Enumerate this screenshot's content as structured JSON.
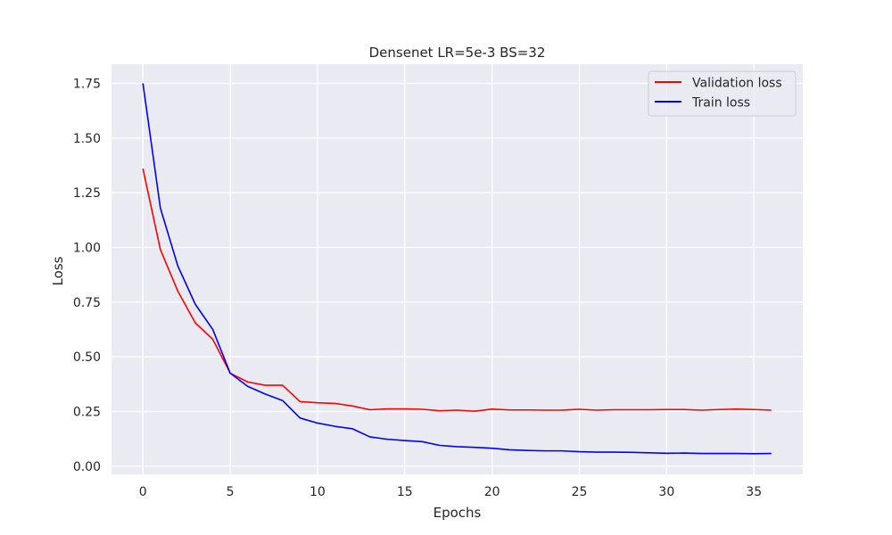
{
  "chart_data": {
    "type": "line",
    "title": "Densenet LR=5e-3 BS=32",
    "xlabel": "Epochs",
    "ylabel": "Loss",
    "xlim": [
      -1.8,
      37.8
    ],
    "ylim": [
      -0.0375,
      1.8375
    ],
    "xticks": [
      0,
      5,
      10,
      15,
      20,
      25,
      30,
      35
    ],
    "xtick_labels": [
      "0",
      "5",
      "10",
      "15",
      "20",
      "25",
      "30",
      "35"
    ],
    "yticks": [
      0.0,
      0.25,
      0.5,
      0.75,
      1.0,
      1.25,
      1.5,
      1.75
    ],
    "ytick_labels": [
      "0.00",
      "0.25",
      "0.50",
      "0.75",
      "1.00",
      "1.25",
      "1.50",
      "1.75"
    ],
    "grid": true,
    "legend_position": "top-right",
    "x": [
      0,
      1,
      2,
      3,
      4,
      5,
      6,
      7,
      8,
      9,
      10,
      11,
      12,
      13,
      14,
      15,
      16,
      17,
      18,
      19,
      20,
      21,
      22,
      23,
      24,
      25,
      26,
      27,
      28,
      29,
      30,
      31,
      32,
      33,
      34,
      35,
      36
    ],
    "series": [
      {
        "name": "Validation loss",
        "color": "#ff0000",
        "values": [
          1.36,
          0.99,
          0.8,
          0.655,
          0.58,
          0.425,
          0.385,
          0.37,
          0.37,
          0.295,
          0.29,
          0.287,
          0.275,
          0.258,
          0.262,
          0.262,
          0.26,
          0.253,
          0.256,
          0.251,
          0.261,
          0.257,
          0.257,
          0.256,
          0.256,
          0.26,
          0.256,
          0.258,
          0.258,
          0.258,
          0.259,
          0.259,
          0.256,
          0.259,
          0.261,
          0.259,
          0.256
        ]
      },
      {
        "name": "Train loss",
        "color": "#0000ff",
        "values": [
          1.75,
          1.18,
          0.915,
          0.74,
          0.625,
          0.425,
          0.365,
          0.33,
          0.3,
          0.22,
          0.197,
          0.182,
          0.171,
          0.134,
          0.123,
          0.117,
          0.112,
          0.095,
          0.089,
          0.086,
          0.082,
          0.075,
          0.072,
          0.07,
          0.07,
          0.066,
          0.064,
          0.064,
          0.063,
          0.061,
          0.059,
          0.06,
          0.058,
          0.058,
          0.058,
          0.057,
          0.058
        ]
      }
    ]
  }
}
